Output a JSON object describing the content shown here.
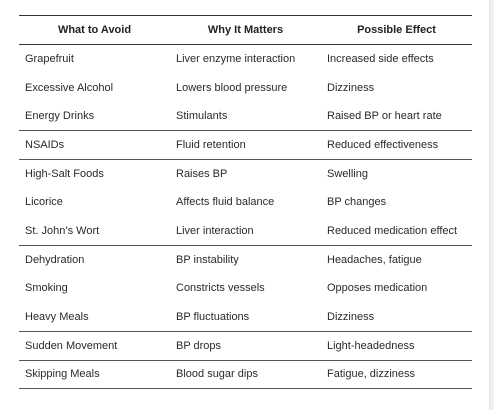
{
  "table": {
    "headers": [
      "What to Avoid",
      "Why It Matters",
      "Possible Effect"
    ],
    "rows": [
      {
        "avoid": "Grapefruit",
        "why": "Liver enzyme interaction",
        "effect": "Increased side effects"
      },
      {
        "avoid": "Excessive Alcohol",
        "why": "Lowers blood pressure",
        "effect": "Dizziness"
      },
      {
        "avoid": "Energy Drinks",
        "why": "Stimulants",
        "effect": "Raised BP or heart rate"
      },
      {
        "avoid": "NSAIDs",
        "why": "Fluid retention",
        "effect": "Reduced effectiveness"
      },
      {
        "avoid": "High-Salt Foods",
        "why": "Raises BP",
        "effect": "Swelling"
      },
      {
        "avoid": "Licorice",
        "why": "Affects fluid balance",
        "effect": "BP changes"
      },
      {
        "avoid": "St. John’s Wort",
        "why": "Liver interaction",
        "effect": "Reduced medication effect"
      },
      {
        "avoid": "Dehydration",
        "why": "BP instability",
        "effect": "Headaches, fatigue"
      },
      {
        "avoid": "Smoking",
        "why": "Constricts vessels",
        "effect": "Opposes medication"
      },
      {
        "avoid": "Heavy Meals",
        "why": "BP fluctuations",
        "effect": "Dizziness"
      },
      {
        "avoid": "Sudden Movement",
        "why": "BP drops",
        "effect": "Light-headedness"
      },
      {
        "avoid": "Skipping Meals",
        "why": "Blood sugar dips",
        "effect": "Fatigue, dizziness"
      }
    ]
  }
}
